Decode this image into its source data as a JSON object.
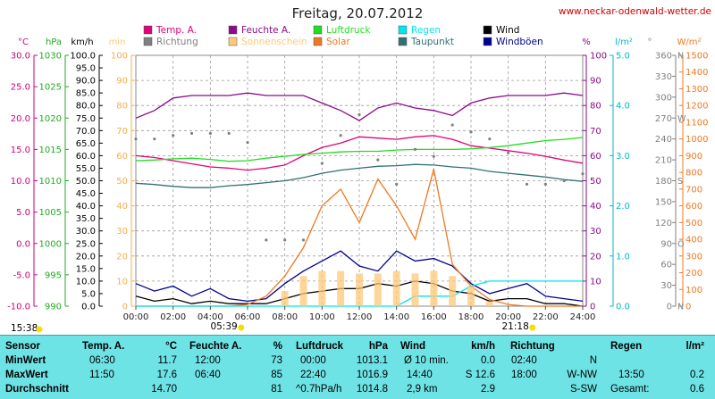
{
  "header": {
    "title": "Freitag, 20.07.2012",
    "site": "www.neckar-odenwald-wetter.de"
  },
  "legend": [
    {
      "label": "Temp. A.",
      "color": "#e0007a"
    },
    {
      "label": "Feuchte A.",
      "color": "#8a0a8a"
    },
    {
      "label": "Luftdruck",
      "color": "#22dd22"
    },
    {
      "label": "Regen",
      "color": "#00e5ee"
    },
    {
      "label": "Wind",
      "color": "#000000"
    },
    {
      "label": "Richtung",
      "color": "#808080"
    },
    {
      "label": "Sonnenschein",
      "color": "#ffc878"
    },
    {
      "label": "Solar",
      "color": "#f07820"
    },
    {
      "label": "Taupunkt",
      "color": "#307070"
    },
    {
      "label": "Windböen",
      "color": "#000090"
    }
  ],
  "axes": {
    "temp": {
      "unit": "°C",
      "ticks": [
        "30.0",
        "25.0",
        "20.0",
        "15.0",
        "10.0",
        "5.0",
        "0.0",
        "-5.0",
        "-10.0"
      ]
    },
    "pressure": {
      "unit": "hPa",
      "ticks": [
        "1030",
        "1025",
        "1020",
        "1015",
        "1010",
        "1005",
        "1000",
        "995",
        "990"
      ]
    },
    "wind": {
      "unit": "km/h",
      "ticks": [
        "100.0",
        "95.0",
        "90.0",
        "85.0",
        "80.0",
        "75.0",
        "70.0",
        "65.0",
        "60.0",
        "55.0",
        "50.0",
        "45.0",
        "40.0",
        "35.0",
        "30.0",
        "25.0",
        "20.0",
        "15.0",
        "10.0",
        "5.0",
        "0.0"
      ]
    },
    "sunshine": {
      "unit": "min",
      "ticks": [
        "100",
        "90",
        "80",
        "70",
        "60",
        "50",
        "40",
        "30",
        "20",
        "10",
        "0"
      ]
    },
    "humidity": {
      "unit": "%",
      "ticks": [
        "100",
        "90",
        "80",
        "70",
        "60",
        "50",
        "40",
        "30",
        "20",
        "10",
        "0"
      ]
    },
    "rain": {
      "unit": "l/m²",
      "ticks": [
        "5.0",
        "4.0",
        "3.0",
        "2.0",
        "1.0",
        "0.0"
      ]
    },
    "direction": {
      "unit": "°",
      "ticks": [
        "360",
        "330",
        "300",
        "270",
        "240",
        "210",
        "180",
        "150",
        "120",
        "90",
        "60",
        "30",
        "0"
      ],
      "compass": {
        "360": "N",
        "270": "W",
        "180": "S",
        "90": "O",
        "0": "N"
      }
    },
    "solar": {
      "unit": "W/m²",
      "ticks": [
        "1500",
        "1400",
        "1300",
        "1200",
        "1100",
        "1000",
        "900",
        "800",
        "700",
        "600",
        "500",
        "400",
        "300",
        "200",
        "100",
        "0"
      ]
    },
    "time": [
      "00:00",
      "02:00",
      "04:00",
      "06:00",
      "08:00",
      "10:00",
      "12:00",
      "14:00",
      "16:00",
      "18:00",
      "20:00",
      "22:00",
      "24:00"
    ]
  },
  "sun": {
    "moonset": "15:38",
    "sunrise": "05:39",
    "sunset": "21:18"
  },
  "chart_data": {
    "type": "line",
    "x_hours": [
      0,
      1,
      2,
      3,
      4,
      5,
      6,
      7,
      8,
      9,
      10,
      11,
      12,
      13,
      14,
      15,
      16,
      17,
      18,
      19,
      20,
      21,
      22,
      23,
      24
    ],
    "series": [
      {
        "name": "Temp. A.",
        "axis": "temp",
        "values": [
          14.0,
          13.7,
          13.2,
          12.7,
          12.2,
          12.0,
          11.7,
          12.0,
          12.5,
          14.0,
          15.3,
          16.0,
          17.0,
          16.8,
          16.6,
          17.0,
          17.2,
          16.6,
          15.6,
          15.2,
          14.8,
          14.4,
          13.9,
          13.3,
          12.8
        ]
      },
      {
        "name": "Feuchte A.",
        "axis": "humidity",
        "values": [
          75,
          78,
          83,
          84,
          84,
          84,
          85,
          84,
          84,
          84,
          81,
          78,
          74,
          79,
          81,
          79,
          78,
          76,
          81,
          83,
          84,
          84,
          84,
          85,
          84
        ]
      },
      {
        "name": "Luftdruck",
        "axis": "pressure",
        "values": [
          1013.2,
          1013.3,
          1013.5,
          1013.6,
          1013.4,
          1013.1,
          1013.2,
          1013.6,
          1013.9,
          1014.2,
          1014.4,
          1014.6,
          1014.7,
          1014.7,
          1014.9,
          1015.0,
          1015.0,
          1015.0,
          1015.1,
          1015.3,
          1015.6,
          1016.0,
          1016.4,
          1016.6,
          1016.9
        ]
      },
      {
        "name": "Taupunkt",
        "axis": "temp",
        "values": [
          9.6,
          9.4,
          9.1,
          8.9,
          8.9,
          9.2,
          9.4,
          9.7,
          10.0,
          10.5,
          11.2,
          11.7,
          12.0,
          12.3,
          12.4,
          12.6,
          12.5,
          12.2,
          12.0,
          11.5,
          11.2,
          10.9,
          10.6,
          10.2,
          9.9
        ]
      },
      {
        "name": "Wind",
        "axis": "wind",
        "values": [
          4,
          2,
          3,
          1,
          2,
          1,
          1,
          1,
          3,
          5,
          6,
          7,
          7,
          9,
          8,
          10,
          9,
          6,
          5,
          2,
          3,
          3,
          1,
          1,
          0
        ]
      },
      {
        "name": "Windböen",
        "axis": "wind",
        "values": [
          9,
          6,
          8,
          4,
          7,
          3,
          2,
          3,
          9,
          14,
          18,
          22,
          16,
          14,
          22,
          18,
          19,
          16,
          9,
          5,
          7,
          9,
          4,
          3,
          2
        ]
      },
      {
        "name": "Solar",
        "axis": "solar",
        "values": [
          0,
          0,
          0,
          0,
          0,
          0,
          10,
          60,
          180,
          350,
          600,
          700,
          500,
          760,
          600,
          400,
          820,
          250,
          120,
          40,
          10,
          0,
          0,
          0,
          0
        ]
      },
      {
        "name": "Regen",
        "axis": "rain",
        "values": [
          0,
          0,
          0,
          0,
          0,
          0,
          0,
          0,
          0,
          0,
          0,
          0,
          0,
          0,
          0,
          0.2,
          0.2,
          0.2,
          0.4,
          0.5,
          0.5,
          0.5,
          0.5,
          0.5,
          0.5
        ]
      },
      {
        "name": "Sonnenschein",
        "axis": "sunshine",
        "values": [
          0,
          0,
          0,
          0,
          0,
          0,
          0,
          0,
          6,
          12,
          14,
          14,
          13,
          13,
          14,
          13,
          14,
          12,
          8,
          2,
          0,
          0,
          0,
          0,
          0
        ]
      },
      {
        "name": "Richtung",
        "axis": "direction",
        "values": [
          240,
          240,
          245,
          248,
          248,
          248,
          235,
          95,
          95,
          95,
          205,
          245,
          275,
          210,
          175,
          225,
          215,
          260,
          250,
          240,
          220,
          175,
          175,
          180,
          190
        ]
      }
    ]
  },
  "stats": {
    "headers": {
      "sensor": "Sensor",
      "temp": "Temp. A.",
      "temp_unit": "°C",
      "hum": "Feuchte A.",
      "hum_unit": "%",
      "press": "Luftdruck",
      "press_unit": "hPa",
      "wind": "Wind",
      "wind_unit": "km/h",
      "dir": "Richtung",
      "rain": "Regen",
      "rain_unit": "l/m²"
    },
    "min": {
      "label": "MinWert",
      "temp_time": "06:30",
      "temp": "11.7",
      "hum_time": "12:00",
      "hum": "73",
      "press_time": "00:00",
      "press": "1013.1",
      "wind_label": "Ø 10 min.",
      "wind": "0.0",
      "dir_time": "02:40",
      "dir": "N",
      "rain_time": "",
      "rain": ""
    },
    "max": {
      "label": "MaxWert",
      "temp_time": "11:50",
      "temp": "17.6",
      "hum_time": "06:40",
      "hum": "85",
      "press_time": "22:40",
      "press": "1016.9",
      "wind_label": "14:40",
      "wind": "S 12.6",
      "dir_time": "18:00",
      "dir": "W-NW",
      "rain_time": "13:50",
      "rain": "0.2"
    },
    "avg": {
      "label": "Durchschnitt",
      "temp_time": "",
      "temp": "14.70",
      "hum_time": "",
      "hum": "81",
      "press_time": "^0.7hPa/h",
      "press": "1014.8",
      "wind_label": "2,9 km",
      "wind": "2.9",
      "dir_time": "",
      "dir": "S-SW",
      "rain_time": "Gesamt:",
      "rain": "0.6"
    }
  }
}
